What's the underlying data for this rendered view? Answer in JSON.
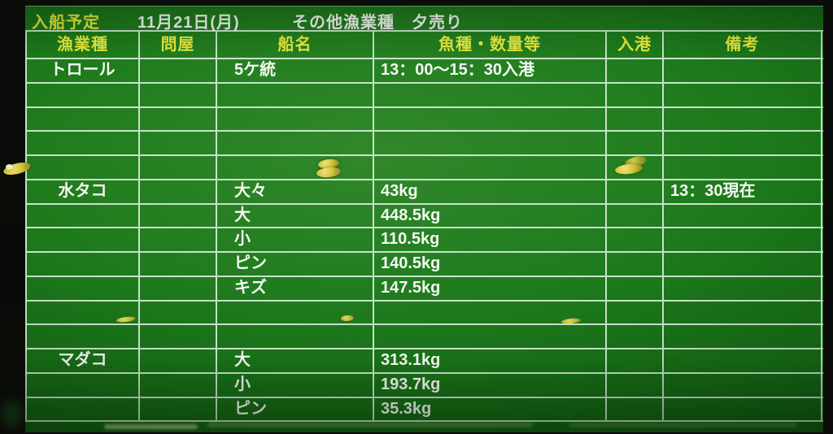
{
  "title_bar": {
    "title": "入船予定",
    "date": "11月21日(月)",
    "category": "その他漁業種　夕売り"
  },
  "table": {
    "columns": [
      "漁業種",
      "問屋",
      "船名",
      "魚種・数量等",
      "入港",
      "備考"
    ],
    "rows": [
      [
        "トロール",
        "",
        "5ケ統",
        "13：00～15：30入港",
        "",
        ""
      ],
      [
        "",
        "",
        "",
        "",
        "",
        ""
      ],
      [
        "",
        "",
        "",
        "",
        "",
        ""
      ],
      [
        "",
        "",
        "",
        "",
        "",
        ""
      ],
      [
        "",
        "",
        "",
        "",
        "",
        ""
      ],
      [
        "水タコ",
        "",
        "大々",
        "43kg",
        "",
        "13：30現在"
      ],
      [
        "",
        "",
        "大",
        "448.5kg",
        "",
        ""
      ],
      [
        "",
        "",
        "小",
        "110.5kg",
        "",
        ""
      ],
      [
        "",
        "",
        "ピン",
        "140.5kg",
        "",
        ""
      ],
      [
        "",
        "",
        "キズ",
        "147.5kg",
        "",
        ""
      ],
      [
        "",
        "",
        "",
        "",
        "",
        ""
      ],
      [
        "",
        "",
        "",
        "",
        "",
        ""
      ],
      [
        "マダコ",
        "",
        "大",
        "313.1kg",
        "",
        ""
      ],
      [
        "",
        "",
        "小",
        "193.7kg",
        "",
        ""
      ],
      [
        "",
        "",
        "ピン",
        "35.3kg",
        "",
        ""
      ]
    ]
  },
  "colors": {
    "board_green": "#1d7a1b",
    "grid_line": "#dceede",
    "header_text": "#e6e93c",
    "body_text": "#f4f8f2",
    "magnet_yellow": "#d4c43a",
    "background": "#0a0c09"
  }
}
